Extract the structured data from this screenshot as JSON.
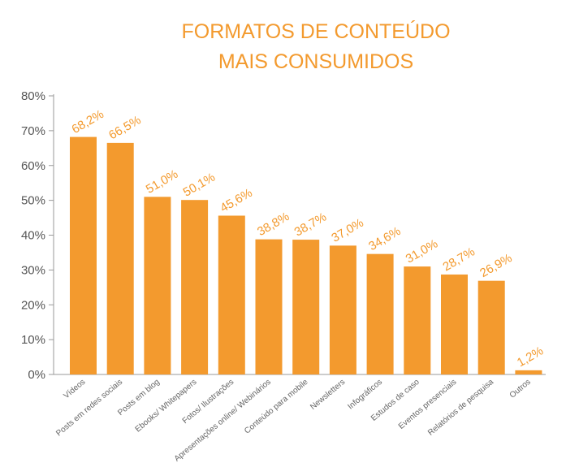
{
  "chart_data": {
    "type": "bar",
    "title_lines": [
      "FORMATOS DE CONTEÚDO",
      "MAIS CONSUMIDOS"
    ],
    "categories": [
      "Vídeos",
      "Posts em redes sociais",
      "Posts em blog",
      "Ebooks/ Whitepapers",
      "Fotos/ Ilustrações",
      "Apresentações online/ Webinários",
      "Conteúdo para mobile",
      "Newsletters",
      "Infográficos",
      "Estudos de caso",
      "Eventos presenciais",
      "Relatórios de pesquisa",
      "Outros"
    ],
    "values": [
      68.2,
      66.5,
      51.0,
      50.1,
      45.6,
      38.8,
      38.7,
      37.0,
      34.6,
      31.0,
      28.7,
      26.9,
      1.2
    ],
    "value_labels": [
      "68,2%",
      "66,5%",
      "51,0%",
      "50,1%",
      "45,6%",
      "38,8%",
      "38,7%",
      "37,0%",
      "34,6%",
      "31,0%",
      "28,7%",
      "26,9%",
      "1,2%"
    ],
    "y_ticks": [
      0,
      10,
      20,
      30,
      40,
      50,
      60,
      70,
      80
    ],
    "y_tick_labels": [
      "0%",
      "10%",
      "20%",
      "30%",
      "40%",
      "50%",
      "60%",
      "70%",
      "80%"
    ],
    "ylim": [
      0,
      80
    ],
    "grid": false,
    "legend": "none",
    "colors": {
      "bar": "#F39A2E",
      "label": "#F39A2E",
      "title": "#F39A2E",
      "axis": "#999999"
    }
  }
}
